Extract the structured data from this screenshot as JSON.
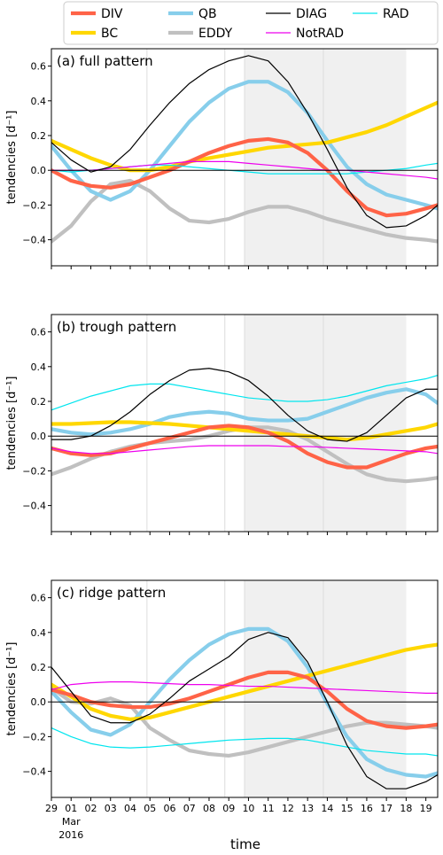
{
  "legend": {
    "entries": [
      {
        "label": "DIV",
        "color": "#FF6347",
        "width": "thick"
      },
      {
        "label": "BC",
        "color": "#FFD700",
        "width": "thick"
      },
      {
        "label": "QB",
        "color": "#87CEEB",
        "width": "thick"
      },
      {
        "label": "EDDY",
        "color": "#C0C0C0",
        "width": "thick"
      },
      {
        "label": "DIAG",
        "color": "#000000",
        "width": "thin"
      },
      {
        "label": "NotRAD",
        "color": "#EE00EE",
        "width": "thin"
      },
      {
        "label": "RAD",
        "color": "#00E5EE",
        "width": "thin"
      }
    ]
  },
  "shared": {
    "ylabel": "tendencies [d⁻¹]",
    "xlabel": "time",
    "x_ticks": [
      0,
      1,
      2,
      3,
      4,
      5,
      6,
      7,
      8,
      9,
      10,
      11,
      12,
      13,
      14,
      15,
      16,
      17,
      18,
      19
    ],
    "x_tick_labels": [
      "29",
      "01",
      "02",
      "03",
      "04",
      "05",
      "06",
      "07",
      "08",
      "09",
      "10",
      "11",
      "12",
      "13",
      "14",
      "15",
      "16",
      "17",
      "18",
      "19"
    ],
    "month_label": "Mar",
    "year_label": "2016",
    "y_ticks": [
      -0.4,
      -0.2,
      0.0,
      0.2,
      0.4,
      0.6
    ],
    "y_tick_labels": [
      "−0.4",
      "−0.2",
      "0.0",
      "0.2",
      "0.4",
      "0.6"
    ],
    "xlim": [
      0,
      19.6
    ],
    "ylim": [
      -0.55,
      0.7
    ],
    "shaded_span": [
      9.8,
      18.0
    ],
    "vlines": [
      4.85,
      8.8,
      9.8,
      13.8
    ]
  },
  "chart_data": [
    {
      "type": "line",
      "title": "(a) full pattern",
      "series": [
        {
          "name": "DIV",
          "x": [
            0,
            1,
            2,
            3,
            4,
            5,
            6,
            7,
            8,
            9,
            10,
            11,
            12,
            13,
            14,
            15,
            16,
            17,
            18,
            19,
            19.6
          ],
          "y": [
            0.0,
            -0.06,
            -0.09,
            -0.1,
            -0.08,
            -0.04,
            0.0,
            0.05,
            0.1,
            0.14,
            0.17,
            0.18,
            0.16,
            0.1,
            0.0,
            -0.12,
            -0.22,
            -0.26,
            -0.25,
            -0.22,
            -0.2
          ]
        },
        {
          "name": "BC",
          "x": [
            0,
            1,
            2,
            3,
            4,
            5,
            6,
            7,
            8,
            9,
            10,
            11,
            12,
            13,
            14,
            15,
            16,
            17,
            18,
            19,
            19.6
          ],
          "y": [
            0.17,
            0.12,
            0.07,
            0.03,
            0.0,
            0.0,
            0.02,
            0.05,
            0.07,
            0.09,
            0.11,
            0.13,
            0.14,
            0.15,
            0.16,
            0.19,
            0.22,
            0.26,
            0.31,
            0.36,
            0.39
          ]
        },
        {
          "name": "QB",
          "x": [
            0,
            1,
            2,
            3,
            4,
            5,
            6,
            7,
            8,
            9,
            10,
            11,
            12,
            13,
            14,
            15,
            16,
            17,
            18,
            19,
            19.6
          ],
          "y": [
            0.14,
            0.0,
            -0.12,
            -0.17,
            -0.12,
            0.0,
            0.14,
            0.28,
            0.39,
            0.47,
            0.51,
            0.51,
            0.45,
            0.33,
            0.17,
            0.02,
            -0.08,
            -0.14,
            -0.17,
            -0.2,
            -0.22
          ]
        },
        {
          "name": "EDDY",
          "x": [
            0,
            1,
            2,
            3,
            4,
            5,
            6,
            7,
            8,
            9,
            10,
            11,
            12,
            13,
            14,
            15,
            16,
            17,
            18,
            19,
            19.6
          ],
          "y": [
            -0.41,
            -0.32,
            -0.18,
            -0.08,
            -0.06,
            -0.12,
            -0.22,
            -0.29,
            -0.3,
            -0.28,
            -0.24,
            -0.21,
            -0.21,
            -0.24,
            -0.28,
            -0.31,
            -0.34,
            -0.37,
            -0.39,
            -0.4,
            -0.41
          ]
        },
        {
          "name": "DIAG",
          "x": [
            0,
            1,
            2,
            3,
            4,
            5,
            6,
            7,
            8,
            9,
            10,
            11,
            12,
            13,
            14,
            15,
            16,
            17,
            18,
            19,
            19.6
          ],
          "y": [
            0.16,
            0.06,
            -0.01,
            0.02,
            0.12,
            0.26,
            0.39,
            0.5,
            0.58,
            0.63,
            0.66,
            0.63,
            0.51,
            0.33,
            0.12,
            -0.1,
            -0.26,
            -0.33,
            -0.32,
            -0.26,
            -0.2
          ]
        },
        {
          "name": "NotRAD",
          "x": [
            0,
            1,
            2,
            3,
            4,
            5,
            6,
            7,
            8,
            9,
            10,
            11,
            12,
            13,
            14,
            15,
            16,
            17,
            18,
            19,
            19.6
          ],
          "y": [
            0.0,
            0.0,
            0.0,
            0.01,
            0.02,
            0.03,
            0.04,
            0.05,
            0.05,
            0.05,
            0.04,
            0.03,
            0.02,
            0.01,
            0.0,
            0.0,
            -0.01,
            -0.02,
            -0.03,
            -0.04,
            -0.05
          ]
        },
        {
          "name": "RAD",
          "x": [
            0,
            1,
            2,
            3,
            4,
            5,
            6,
            7,
            8,
            9,
            10,
            11,
            12,
            13,
            14,
            15,
            16,
            17,
            18,
            19,
            19.6
          ],
          "y": [
            0.0,
            -0.01,
            0.0,
            0.01,
            0.02,
            0.03,
            0.03,
            0.02,
            0.01,
            0.0,
            -0.01,
            -0.02,
            -0.02,
            -0.02,
            -0.02,
            -0.02,
            -0.01,
            0.0,
            0.01,
            0.03,
            0.04
          ]
        },
        {
          "name": "zero",
          "x": [
            0,
            19.6
          ],
          "y": [
            0,
            0
          ]
        }
      ]
    },
    {
      "type": "line",
      "title": "(b) trough pattern",
      "series": [
        {
          "name": "DIV",
          "x": [
            0,
            1,
            2,
            3,
            4,
            5,
            6,
            7,
            8,
            9,
            10,
            11,
            12,
            13,
            14,
            15,
            16,
            17,
            18,
            19,
            19.6
          ],
          "y": [
            -0.07,
            -0.1,
            -0.11,
            -0.1,
            -0.07,
            -0.04,
            -0.01,
            0.02,
            0.05,
            0.06,
            0.05,
            0.02,
            -0.03,
            -0.1,
            -0.15,
            -0.18,
            -0.18,
            -0.14,
            -0.1,
            -0.07,
            -0.06
          ]
        },
        {
          "name": "BC",
          "x": [
            0,
            1,
            2,
            3,
            4,
            5,
            6,
            7,
            8,
            9,
            10,
            11,
            12,
            13,
            14,
            15,
            16,
            17,
            18,
            19,
            19.6
          ],
          "y": [
            0.07,
            0.07,
            0.075,
            0.08,
            0.08,
            0.075,
            0.07,
            0.06,
            0.05,
            0.04,
            0.03,
            0.02,
            0.01,
            0.0,
            -0.01,
            -0.02,
            -0.01,
            0.01,
            0.03,
            0.05,
            0.07
          ]
        },
        {
          "name": "QB",
          "x": [
            0,
            1,
            2,
            3,
            4,
            5,
            6,
            7,
            8,
            9,
            10,
            11,
            12,
            13,
            14,
            15,
            16,
            17,
            18,
            19,
            19.6
          ],
          "y": [
            0.04,
            0.02,
            0.01,
            0.02,
            0.04,
            0.07,
            0.11,
            0.13,
            0.14,
            0.13,
            0.1,
            0.09,
            0.09,
            0.1,
            0.14,
            0.18,
            0.22,
            0.25,
            0.27,
            0.24,
            0.19
          ]
        },
        {
          "name": "EDDY",
          "x": [
            0,
            1,
            2,
            3,
            4,
            5,
            6,
            7,
            8,
            9,
            10,
            11,
            12,
            13,
            14,
            15,
            16,
            17,
            18,
            19,
            19.6
          ],
          "y": [
            -0.22,
            -0.18,
            -0.13,
            -0.09,
            -0.06,
            -0.04,
            -0.03,
            -0.02,
            0.0,
            0.03,
            0.05,
            0.05,
            0.03,
            -0.02,
            -0.09,
            -0.16,
            -0.22,
            -0.25,
            -0.26,
            -0.25,
            -0.24
          ]
        },
        {
          "name": "DIAG",
          "x": [
            0,
            1,
            2,
            3,
            4,
            5,
            6,
            7,
            8,
            9,
            10,
            11,
            12,
            13,
            14,
            15,
            16,
            17,
            18,
            19,
            19.6
          ],
          "y": [
            -0.02,
            -0.02,
            0.0,
            0.06,
            0.14,
            0.24,
            0.32,
            0.38,
            0.39,
            0.37,
            0.32,
            0.23,
            0.12,
            0.03,
            -0.02,
            -0.03,
            0.02,
            0.12,
            0.22,
            0.27,
            0.27
          ]
        },
        {
          "name": "NotRAD",
          "x": [
            0,
            1,
            2,
            3,
            4,
            5,
            6,
            7,
            8,
            9,
            10,
            11,
            12,
            13,
            14,
            15,
            16,
            17,
            18,
            19,
            19.6
          ],
          "y": [
            -0.07,
            -0.09,
            -0.1,
            -0.1,
            -0.09,
            -0.08,
            -0.07,
            -0.06,
            -0.055,
            -0.055,
            -0.055,
            -0.055,
            -0.06,
            -0.06,
            -0.065,
            -0.07,
            -0.075,
            -0.08,
            -0.085,
            -0.09,
            -0.1
          ]
        },
        {
          "name": "RAD",
          "x": [
            0,
            1,
            2,
            3,
            4,
            5,
            6,
            7,
            8,
            9,
            10,
            11,
            12,
            13,
            14,
            15,
            16,
            17,
            18,
            19,
            19.6
          ],
          "y": [
            0.15,
            0.19,
            0.23,
            0.26,
            0.29,
            0.3,
            0.3,
            0.28,
            0.26,
            0.24,
            0.22,
            0.21,
            0.2,
            0.2,
            0.21,
            0.23,
            0.26,
            0.29,
            0.31,
            0.33,
            0.35
          ]
        },
        {
          "name": "zero",
          "x": [
            0,
            19.6
          ],
          "y": [
            0,
            0
          ]
        }
      ]
    },
    {
      "type": "line",
      "title": "(c) ridge pattern",
      "series": [
        {
          "name": "DIV",
          "x": [
            0,
            1,
            2,
            3,
            4,
            5,
            6,
            7,
            8,
            9,
            10,
            11,
            12,
            13,
            14,
            15,
            16,
            17,
            18,
            19,
            19.6
          ],
          "y": [
            0.07,
            0.04,
            0.0,
            -0.02,
            -0.03,
            -0.03,
            -0.01,
            0.02,
            0.06,
            0.1,
            0.14,
            0.17,
            0.17,
            0.14,
            0.06,
            -0.04,
            -0.11,
            -0.14,
            -0.15,
            -0.14,
            -0.13
          ]
        },
        {
          "name": "BC",
          "x": [
            0,
            1,
            2,
            3,
            4,
            5,
            6,
            7,
            8,
            9,
            10,
            11,
            12,
            13,
            14,
            15,
            16,
            17,
            18,
            19,
            19.6
          ],
          "y": [
            0.1,
            0.03,
            -0.04,
            -0.08,
            -0.1,
            -0.09,
            -0.06,
            -0.03,
            0.0,
            0.03,
            0.06,
            0.09,
            0.12,
            0.15,
            0.18,
            0.21,
            0.24,
            0.27,
            0.3,
            0.32,
            0.33
          ]
        },
        {
          "name": "QB",
          "x": [
            0,
            1,
            2,
            3,
            4,
            5,
            6,
            7,
            8,
            9,
            10,
            11,
            12,
            13,
            14,
            15,
            16,
            17,
            18,
            19,
            19.6
          ],
          "y": [
            0.06,
            -0.06,
            -0.16,
            -0.19,
            -0.13,
            0.0,
            0.13,
            0.24,
            0.33,
            0.39,
            0.42,
            0.42,
            0.35,
            0.2,
            -0.01,
            -0.2,
            -0.33,
            -0.39,
            -0.42,
            -0.43,
            -0.41
          ]
        },
        {
          "name": "EDDY",
          "x": [
            0,
            1,
            2,
            3,
            4,
            5,
            6,
            7,
            8,
            9,
            10,
            11,
            12,
            13,
            14,
            15,
            16,
            17,
            18,
            19,
            19.6
          ],
          "y": [
            0.08,
            0.0,
            -0.01,
            0.02,
            -0.02,
            -0.15,
            -0.22,
            -0.28,
            -0.3,
            -0.31,
            -0.29,
            -0.26,
            -0.23,
            -0.2,
            -0.17,
            -0.14,
            -0.12,
            -0.12,
            -0.13,
            -0.14,
            -0.15
          ]
        },
        {
          "name": "DIAG",
          "x": [
            0,
            1,
            2,
            3,
            4,
            5,
            6,
            7,
            8,
            9,
            10,
            11,
            12,
            13,
            14,
            15,
            16,
            17,
            18,
            19,
            19.6
          ],
          "y": [
            0.2,
            0.06,
            -0.08,
            -0.12,
            -0.12,
            -0.07,
            0.02,
            0.12,
            0.19,
            0.26,
            0.36,
            0.4,
            0.37,
            0.23,
            0.0,
            -0.25,
            -0.43,
            -0.5,
            -0.5,
            -0.46,
            -0.42
          ]
        },
        {
          "name": "NotRAD",
          "x": [
            0,
            1,
            2,
            3,
            4,
            5,
            6,
            7,
            8,
            9,
            10,
            11,
            12,
            13,
            14,
            15,
            16,
            17,
            18,
            19,
            19.6
          ],
          "y": [
            0.07,
            0.1,
            0.11,
            0.115,
            0.115,
            0.11,
            0.105,
            0.1,
            0.1,
            0.095,
            0.09,
            0.09,
            0.085,
            0.08,
            0.075,
            0.07,
            0.065,
            0.06,
            0.055,
            0.05,
            0.05
          ]
        },
        {
          "name": "RAD",
          "x": [
            0,
            1,
            2,
            3,
            4,
            5,
            6,
            7,
            8,
            9,
            10,
            11,
            12,
            13,
            14,
            15,
            16,
            17,
            18,
            19,
            19.6
          ],
          "y": [
            -0.15,
            -0.2,
            -0.24,
            -0.26,
            -0.265,
            -0.26,
            -0.25,
            -0.24,
            -0.23,
            -0.22,
            -0.215,
            -0.21,
            -0.21,
            -0.22,
            -0.24,
            -0.26,
            -0.28,
            -0.29,
            -0.3,
            -0.3,
            -0.31
          ]
        },
        {
          "name": "zero",
          "x": [
            0,
            19.6
          ],
          "y": [
            0,
            0
          ]
        }
      ]
    }
  ]
}
